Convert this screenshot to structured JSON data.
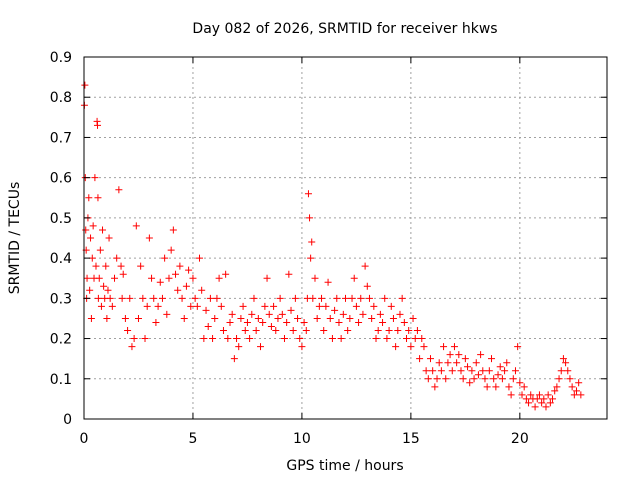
{
  "chart_data": {
    "type": "scatter",
    "title": "Day 082 of 2026, SRMTID for receiver hkws",
    "xlabel": "GPS time / hours",
    "ylabel": "SRMTID / TECUs",
    "xlim": [
      0,
      24
    ],
    "ylim": [
      0,
      0.9
    ],
    "xticks": [
      0,
      5,
      10,
      15,
      20
    ],
    "xtick_labels": [
      "0",
      "5",
      "10",
      "15",
      "20"
    ],
    "yticks": [
      0,
      0.1,
      0.2,
      0.3,
      0.4,
      0.5,
      0.6,
      0.7,
      0.8,
      0.9
    ],
    "ytick_labels": [
      "0",
      "0.1",
      "0.2",
      "0.3",
      "0.4",
      "0.5",
      "0.6",
      "0.7",
      "0.8",
      "0.9"
    ],
    "grid": true,
    "marker": "plus",
    "color": "#ff0000",
    "series": [
      {
        "name": "SRMTID",
        "x": [
          0.02,
          0.04,
          0.06,
          0.08,
          0.1,
          0.12,
          0.14,
          0.18,
          0.22,
          0.26,
          0.3,
          0.34,
          0.38,
          0.42,
          0.46,
          0.5,
          0.55,
          0.6,
          0.62,
          0.64,
          0.66,
          0.7,
          0.75,
          0.8,
          0.85,
          0.9,
          0.95,
          1.0,
          1.05,
          1.1,
          1.15,
          1.2,
          1.3,
          1.4,
          1.5,
          1.6,
          1.7,
          1.75,
          1.8,
          1.9,
          2.0,
          2.1,
          2.2,
          2.3,
          2.4,
          2.5,
          2.6,
          2.7,
          2.8,
          2.9,
          3.0,
          3.1,
          3.2,
          3.3,
          3.4,
          3.5,
          3.6,
          3.7,
          3.8,
          3.9,
          4.0,
          4.1,
          4.2,
          4.3,
          4.4,
          4.5,
          4.6,
          4.7,
          4.8,
          4.9,
          5.0,
          5.1,
          5.2,
          5.3,
          5.4,
          5.5,
          5.6,
          5.7,
          5.8,
          5.9,
          6.0,
          6.1,
          6.2,
          6.3,
          6.4,
          6.5,
          6.6,
          6.7,
          6.8,
          6.9,
          7.0,
          7.1,
          7.2,
          7.3,
          7.4,
          7.5,
          7.6,
          7.7,
          7.8,
          7.9,
          8.0,
          8.1,
          8.2,
          8.3,
          8.4,
          8.5,
          8.6,
          8.7,
          8.8,
          8.9,
          9.0,
          9.1,
          9.2,
          9.3,
          9.4,
          9.5,
          9.6,
          9.7,
          9.8,
          9.9,
          10.0,
          10.1,
          10.2,
          10.25,
          10.3,
          10.35,
          10.4,
          10.45,
          10.5,
          10.6,
          10.7,
          10.8,
          10.9,
          11.0,
          11.1,
          11.2,
          11.3,
          11.4,
          11.5,
          11.6,
          11.7,
          11.8,
          11.9,
          12.0,
          12.1,
          12.2,
          12.3,
          12.4,
          12.5,
          12.6,
          12.7,
          12.8,
          12.9,
          13.0,
          13.1,
          13.2,
          13.3,
          13.4,
          13.5,
          13.6,
          13.7,
          13.8,
          13.9,
          14.0,
          14.1,
          14.2,
          14.3,
          14.4,
          14.5,
          14.6,
          14.7,
          14.8,
          14.9,
          15.0,
          15.1,
          15.2,
          15.3,
          15.4,
          15.5,
          15.6,
          15.7,
          15.8,
          15.9,
          16.0,
          16.1,
          16.2,
          16.3,
          16.4,
          16.5,
          16.6,
          16.7,
          16.8,
          16.9,
          17.0,
          17.1,
          17.2,
          17.3,
          17.4,
          17.5,
          17.6,
          17.7,
          17.8,
          17.9,
          18.0,
          18.1,
          18.2,
          18.3,
          18.4,
          18.5,
          18.6,
          18.7,
          18.8,
          18.9,
          19.0,
          19.1,
          19.2,
          19.3,
          19.4,
          19.5,
          19.6,
          19.7,
          19.8,
          19.9,
          20.0,
          20.1,
          20.2,
          20.3,
          20.4,
          20.5,
          20.6,
          20.7,
          20.8,
          20.9,
          21.0,
          21.1,
          21.2,
          21.3,
          21.4,
          21.5,
          21.6,
          21.7,
          21.8,
          21.9,
          22.0,
          22.1,
          22.2,
          22.3,
          22.4,
          22.5,
          22.6,
          22.7,
          22.8
        ],
        "y": [
          0.78,
          0.83,
          0.6,
          0.47,
          0.42,
          0.3,
          0.35,
          0.5,
          0.55,
          0.32,
          0.45,
          0.25,
          0.4,
          0.48,
          0.35,
          0.6,
          0.38,
          0.74,
          0.73,
          0.55,
          0.3,
          0.35,
          0.42,
          0.28,
          0.47,
          0.33,
          0.3,
          0.38,
          0.25,
          0.32,
          0.45,
          0.3,
          0.28,
          0.35,
          0.4,
          0.57,
          0.38,
          0.3,
          0.36,
          0.25,
          0.22,
          0.3,
          0.18,
          0.2,
          0.48,
          0.25,
          0.38,
          0.3,
          0.2,
          0.28,
          0.45,
          0.35,
          0.3,
          0.24,
          0.28,
          0.34,
          0.3,
          0.4,
          0.26,
          0.35,
          0.42,
          0.47,
          0.36,
          0.32,
          0.38,
          0.3,
          0.25,
          0.33,
          0.37,
          0.28,
          0.35,
          0.3,
          0.28,
          0.4,
          0.32,
          0.2,
          0.27,
          0.23,
          0.3,
          0.2,
          0.25,
          0.3,
          0.35,
          0.28,
          0.22,
          0.36,
          0.2,
          0.24,
          0.26,
          0.15,
          0.2,
          0.18,
          0.25,
          0.28,
          0.22,
          0.24,
          0.2,
          0.26,
          0.3,
          0.22,
          0.25,
          0.18,
          0.24,
          0.28,
          0.35,
          0.26,
          0.23,
          0.28,
          0.22,
          0.25,
          0.3,
          0.26,
          0.2,
          0.24,
          0.36,
          0.27,
          0.22,
          0.3,
          0.25,
          0.2,
          0.18,
          0.24,
          0.22,
          0.3,
          0.56,
          0.5,
          0.4,
          0.44,
          0.3,
          0.35,
          0.25,
          0.28,
          0.3,
          0.22,
          0.28,
          0.34,
          0.25,
          0.2,
          0.27,
          0.3,
          0.24,
          0.2,
          0.26,
          0.3,
          0.22,
          0.25,
          0.3,
          0.35,
          0.28,
          0.24,
          0.3,
          0.26,
          0.38,
          0.33,
          0.3,
          0.25,
          0.28,
          0.2,
          0.22,
          0.26,
          0.24,
          0.3,
          0.2,
          0.22,
          0.28,
          0.25,
          0.18,
          0.22,
          0.26,
          0.3,
          0.24,
          0.2,
          0.22,
          0.18,
          0.25,
          0.2,
          0.22,
          0.15,
          0.2,
          0.18,
          0.12,
          0.1,
          0.15,
          0.12,
          0.08,
          0.1,
          0.14,
          0.12,
          0.18,
          0.1,
          0.14,
          0.16,
          0.12,
          0.18,
          0.14,
          0.16,
          0.12,
          0.1,
          0.15,
          0.13,
          0.09,
          0.12,
          0.1,
          0.14,
          0.11,
          0.16,
          0.12,
          0.1,
          0.08,
          0.12,
          0.15,
          0.1,
          0.08,
          0.11,
          0.13,
          0.1,
          0.12,
          0.14,
          0.08,
          0.06,
          0.1,
          0.12,
          0.18,
          0.09,
          0.06,
          0.08,
          0.05,
          0.04,
          0.06,
          0.05,
          0.03,
          0.05,
          0.06,
          0.04,
          0.05,
          0.03,
          0.06,
          0.04,
          0.05,
          0.07,
          0.08,
          0.1,
          0.12,
          0.15,
          0.14,
          0.12,
          0.1,
          0.08,
          0.06,
          0.07,
          0.09,
          0.06
        ]
      }
    ]
  }
}
